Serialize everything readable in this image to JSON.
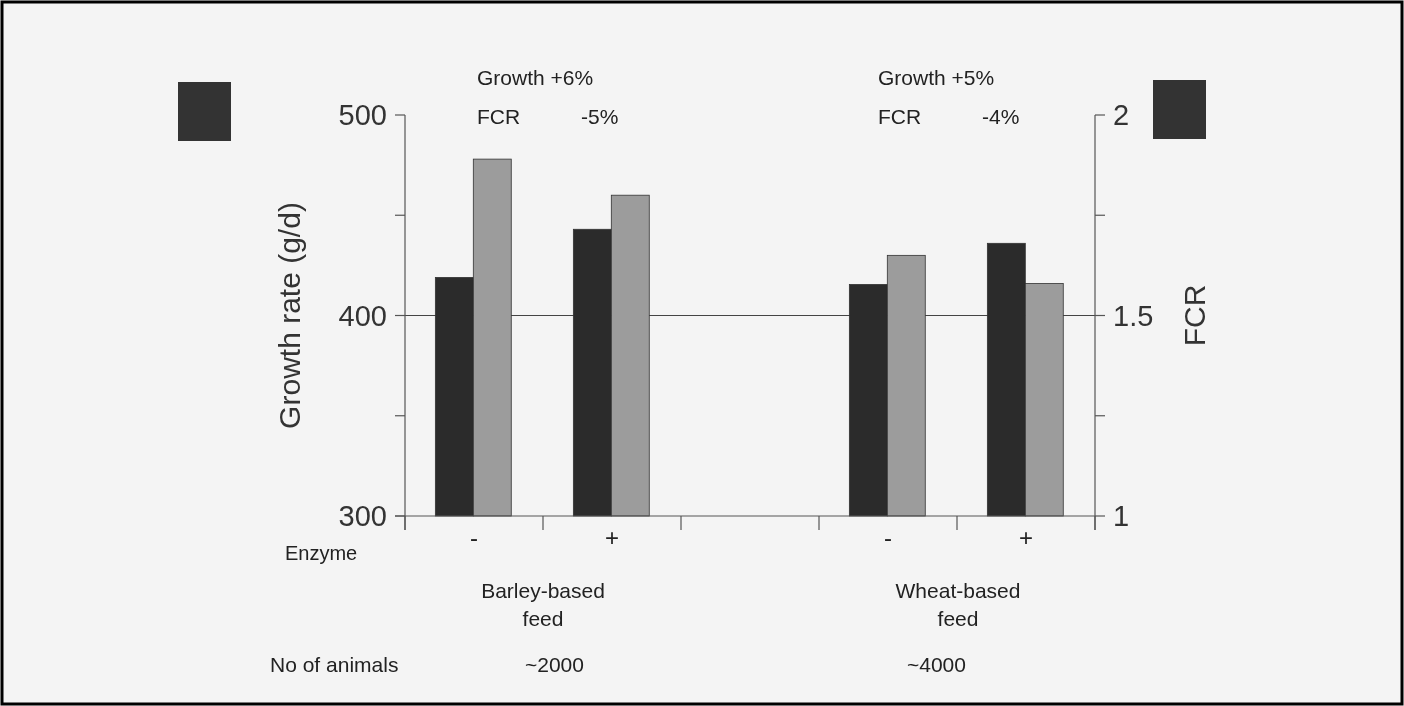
{
  "chart_data": {
    "type": "bar",
    "ylabel": "Growth rate (g/d)",
    "y2label": "FCR",
    "xlabel": "Enzyme",
    "categories": [
      "-",
      "+",
      null,
      "-",
      "+"
    ],
    "series": [
      {
        "color": "#2b2b2b",
        "values": [
          419,
          443,
          null,
          415.5,
          436
        ]
      },
      {
        "color": "#9c9c9c",
        "axis": "y2",
        "values": [
          1.89,
          1.8,
          null,
          1.65,
          1.58
        ]
      }
    ],
    "ylim": [
      300,
      500
    ],
    "yticks": [
      300,
      {
        "value": 350,
        "label": null
      },
      400,
      {
        "value": 450,
        "label": null
      },
      500
    ],
    "y2lim": [
      1,
      2
    ],
    "y2ticks": [
      1,
      {
        "value": 1.25,
        "label": null
      },
      1.5,
      {
        "value": 1.75,
        "label": null
      },
      2
    ],
    "ref_lines": [
      {
        "axis": "y",
        "value": 400,
        "color": "#444444"
      }
    ],
    "annotations": [
      "Growth +6%",
      "FCR -5%",
      "Growth +5%",
      "FCR -4%",
      "Barley-based feed",
      "Wheat-based feed",
      "No of animals",
      "~2000",
      "~4000"
    ]
  }
}
